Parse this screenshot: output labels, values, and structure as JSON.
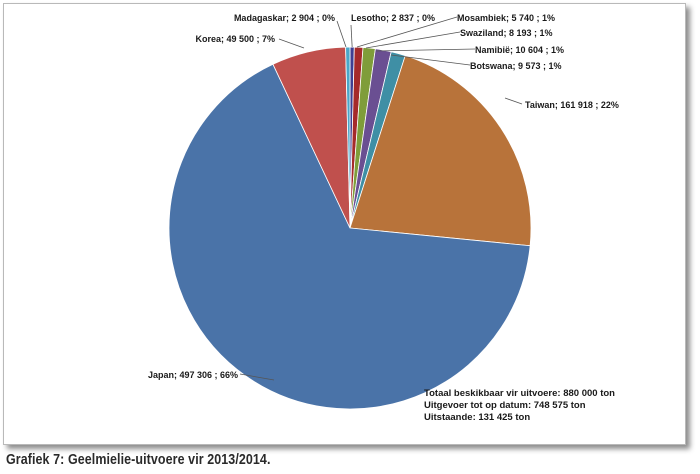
{
  "caption": "Grafiek 7: Geelmielie-uitvoere vir 2013/2014.",
  "chart_data": {
    "type": "pie",
    "start": "12 o'clock, clockwise",
    "slices": [
      {
        "label": "Lesotho",
        "value": 2837,
        "percent": "0%",
        "color": "#3f3f91",
        "display": "Lesotho; 2 837 ; 0%"
      },
      {
        "label": "Mosambiek",
        "value": 5740,
        "percent": "1%",
        "color": "#a52a2a",
        "display": "Mosambiek; 5 740 ; 1%"
      },
      {
        "label": "Swaziland",
        "value": 8193,
        "percent": "1%",
        "color": "#7f9d3a",
        "display": "Swaziland; 8 193 ; 1%"
      },
      {
        "label": "Namibië",
        "value": 10604,
        "percent": "1%",
        "color": "#6a4f92",
        "display": "Namibië; 10 604 ; 1%"
      },
      {
        "label": "Botswana",
        "value": 9573,
        "percent": "1%",
        "color": "#3f8fa5",
        "display": "Botswana; 9 573 ; 1%"
      },
      {
        "label": "Taiwan",
        "value": 161918,
        "percent": "22%",
        "color": "#b8733a",
        "display": "Taiwan; 161 918 ; 22%"
      },
      {
        "label": "Japan",
        "value": 497306,
        "percent": "66%",
        "color": "#4a73a8",
        "display": "Japan; 497 306 ; 66%"
      },
      {
        "label": "Korea",
        "value": 49500,
        "percent": "7%",
        "color": "#c0504d",
        "display": "Korea; 49 500 ; 7%"
      },
      {
        "label": "Madagaskar",
        "value": 2904,
        "percent": "0%",
        "color": "#4aa7c9",
        "display": "Madagaskar; 2 904 ; 0%"
      }
    ],
    "summary": [
      "Totaal beskikbaar vir uitvoere: 880 000 ton",
      "Uitgevoer tot op datum: 748 575 ton",
      "Uitstaande: 131 425 ton"
    ]
  }
}
